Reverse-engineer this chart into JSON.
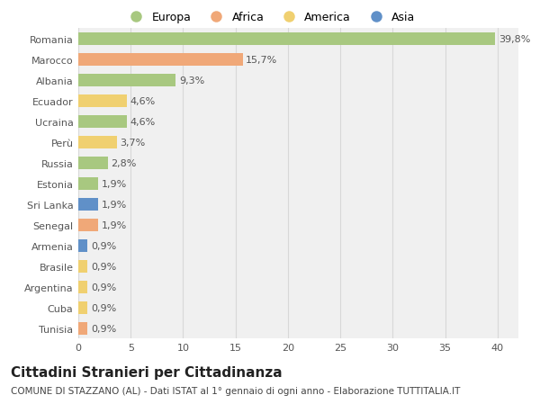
{
  "countries": [
    "Romania",
    "Marocco",
    "Albania",
    "Ecuador",
    "Ucraina",
    "Perù",
    "Russia",
    "Estonia",
    "Sri Lanka",
    "Senegal",
    "Armenia",
    "Brasile",
    "Argentina",
    "Cuba",
    "Tunisia"
  ],
  "values": [
    39.8,
    15.7,
    9.3,
    4.6,
    4.6,
    3.7,
    2.8,
    1.9,
    1.9,
    1.9,
    0.9,
    0.9,
    0.9,
    0.9,
    0.9
  ],
  "labels": [
    "39,8%",
    "15,7%",
    "9,3%",
    "4,6%",
    "4,6%",
    "3,7%",
    "2,8%",
    "1,9%",
    "1,9%",
    "1,9%",
    "0,9%",
    "0,9%",
    "0,9%",
    "0,9%",
    "0,9%"
  ],
  "continents": [
    "Europa",
    "Africa",
    "Europa",
    "America",
    "Europa",
    "America",
    "Europa",
    "Europa",
    "Asia",
    "Africa",
    "Asia",
    "America",
    "America",
    "America",
    "Africa"
  ],
  "continent_colors": {
    "Europa": "#a8c880",
    "Africa": "#f0a878",
    "America": "#f0d070",
    "Asia": "#6090c8"
  },
  "legend_order": [
    "Europa",
    "Africa",
    "America",
    "Asia"
  ],
  "xlim": [
    0,
    42
  ],
  "xticks": [
    0,
    5,
    10,
    15,
    20,
    25,
    30,
    35,
    40
  ],
  "title": "Cittadini Stranieri per Cittadinanza",
  "subtitle": "COMUNE DI STAZZANO (AL) - Dati ISTAT al 1° gennaio di ogni anno - Elaborazione TUTTITALIA.IT",
  "plot_bg_color": "#f0f0f0",
  "fig_bg_color": "#ffffff",
  "grid_color": "#d8d8d8",
  "bar_label_color": "#555555",
  "ytick_color": "#555555",
  "xtick_color": "#555555",
  "title_fontsize": 11,
  "subtitle_fontsize": 7.5,
  "label_fontsize": 8,
  "tick_fontsize": 8,
  "legend_fontsize": 9
}
